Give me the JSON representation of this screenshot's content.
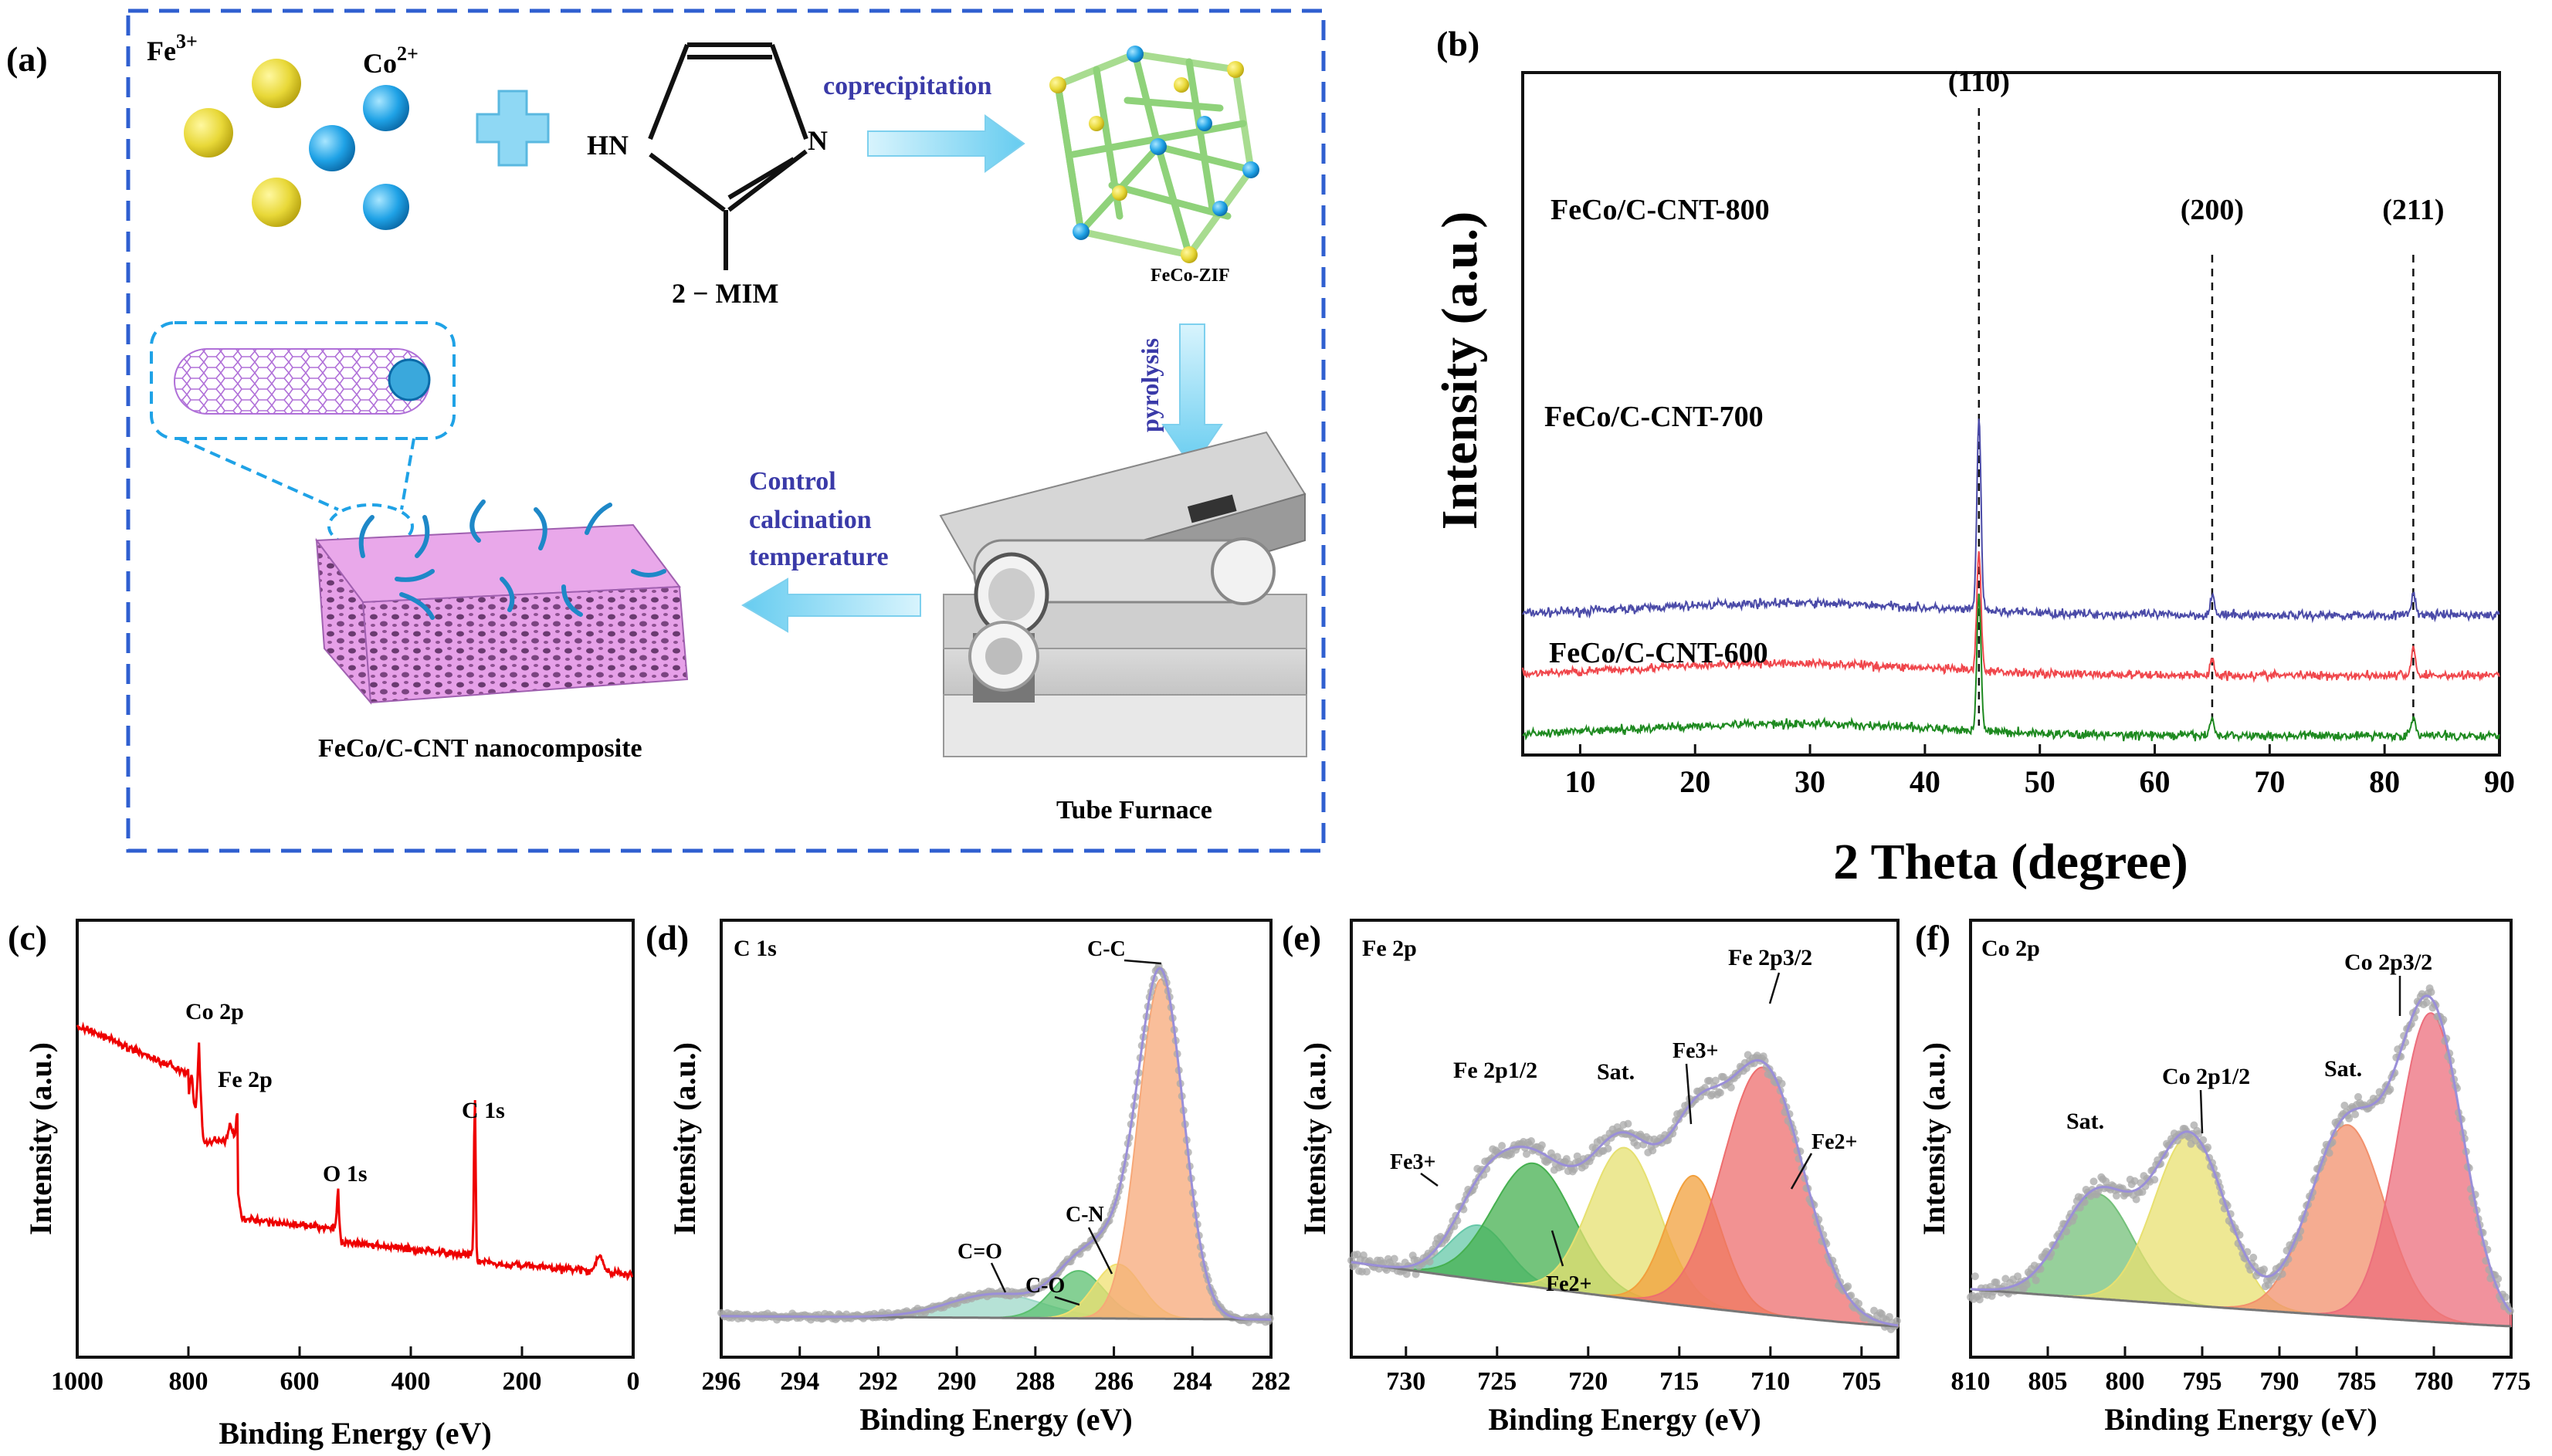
{
  "panel_labels": [
    "(a)",
    "(b)",
    "(c)",
    "(d)",
    "(e)",
    "(f)"
  ],
  "scheme": {
    "fe_ion": "Fe",
    "fe_charge": "3+",
    "co_ion": "Co",
    "co_charge": "2+",
    "linker_hn": "HN",
    "linker_n": "N",
    "linker_name": "2 − MIM",
    "step_coprecipitation": "coprecipitation",
    "mof_name": "FeCo-ZIF",
    "step_pyrolysis": "pyrolysis",
    "furnace_label": "Tube Furnace",
    "step_control": [
      "Control",
      "calcination",
      "temperature"
    ],
    "product_label": "FeCo/C-CNT nanocomposite",
    "colors": {
      "fe": "#e8d838",
      "co": "#1fa2e6",
      "frame": "#2f5fd0",
      "arrow": "#66ccf0",
      "cnt": "#c690e0",
      "text_blue": "#3a3aa8"
    }
  },
  "chart_data": [
    {
      "id": "b",
      "type": "line",
      "xlabel": "2 Theta (degree)",
      "ylabel": "Intensity (a.u.)",
      "xlim": [
        5,
        90
      ],
      "xticks": [
        10,
        20,
        30,
        40,
        50,
        60,
        70,
        80,
        90
      ],
      "peaks": [
        {
          "x": 44.7,
          "label": "(110)"
        },
        {
          "x": 65.0,
          "label": "(200)"
        },
        {
          "x": 82.5,
          "label": "(211)"
        }
      ],
      "series": [
        {
          "name": "FeCo/C-CNT-800",
          "color": "#4b4ba8",
          "baseline": 0.62,
          "peak_heights": [
            2.9,
            0.3,
            0.34
          ]
        },
        {
          "name": "FeCo/C-CNT-700",
          "color": "#f0474c",
          "baseline": 0.32,
          "peak_heights": [
            1.8,
            0.24,
            0.42
          ]
        },
        {
          "name": "FeCo/C-CNT-600",
          "color": "#1e8a20",
          "baseline": 0.02,
          "peak_heights": [
            2.1,
            0.25,
            0.27
          ]
        }
      ]
    },
    {
      "id": "c",
      "type": "line",
      "xlabel": "Binding Energy (eV)",
      "ylabel": "Intensity (a.u.)",
      "xlim": [
        1000,
        0
      ],
      "xticks": [
        1000,
        800,
        600,
        400,
        200,
        0
      ],
      "series": [
        {
          "name": "survey",
          "color": "#ee0000"
        }
      ],
      "annotations": [
        {
          "label": "Co 2p",
          "x": 780
        },
        {
          "label": "Fe 2p",
          "x": 711
        },
        {
          "label": "O 1s",
          "x": 531
        },
        {
          "label": "C 1s",
          "x": 284.8
        }
      ]
    },
    {
      "id": "d",
      "type": "line",
      "title": "C 1s",
      "xlabel": "Binding Energy (eV)",
      "ylabel": "Intensity (a.u.)",
      "xlim": [
        296,
        282
      ],
      "xticks": [
        296,
        294,
        292,
        290,
        288,
        286,
        284,
        282
      ],
      "components": [
        {
          "label": "C=O",
          "center": 289.0,
          "height": 0.07,
          "width": 2.4,
          "color": "#9ed8c8"
        },
        {
          "label": "C-O",
          "center": 286.9,
          "height": 0.14,
          "width": 1.3,
          "color": "#5cc070"
        },
        {
          "label": "C-N",
          "center": 285.9,
          "height": 0.16,
          "width": 1.2,
          "color": "#f0e070"
        },
        {
          "label": "C-C",
          "center": 284.8,
          "height": 1.0,
          "width": 1.15,
          "color": "#f7a878"
        }
      ]
    },
    {
      "id": "e",
      "type": "line",
      "title": "Fe 2p",
      "xlabel": "Binding Energy (eV)",
      "ylabel": "Intensity (a.u.)",
      "xlim": [
        733,
        703
      ],
      "xticks": [
        730,
        725,
        720,
        715,
        710,
        705
      ],
      "annotations": [
        "Fe 2p1/2",
        "Sat.",
        "Fe3+",
        "Fe 2p3/2",
        "Fe2+",
        "Fe3+",
        "Fe2+"
      ],
      "components": [
        {
          "center": 726.0,
          "height": 0.22,
          "width": 3.2,
          "color": "#66c8a8"
        },
        {
          "center": 723.0,
          "height": 0.5,
          "width": 4.4,
          "color": "#46b050"
        },
        {
          "center": 718.0,
          "height": 0.61,
          "width": 3.8,
          "color": "#e6e070"
        },
        {
          "center": 714.2,
          "height": 0.53,
          "width": 3.0,
          "color": "#f2a03c"
        },
        {
          "center": 710.4,
          "height": 1.0,
          "width": 4.4,
          "color": "#ee6e6e"
        }
      ]
    },
    {
      "id": "f",
      "type": "line",
      "title": "Co 2p",
      "xlabel": "Binding Energy (eV)",
      "ylabel": "Intensity (a.u.)",
      "xlim": [
        810,
        775
      ],
      "xticks": [
        810,
        805,
        800,
        795,
        790,
        785,
        780,
        775
      ],
      "annotations": [
        "Sat.",
        "Co 2p1/2",
        "Sat.",
        "Co 2p3/2"
      ],
      "components": [
        {
          "center": 801.8,
          "height": 0.34,
          "width": 4.6,
          "color": "#74c07a"
        },
        {
          "center": 795.8,
          "height": 0.55,
          "width": 4.6,
          "color": "#e8e070"
        },
        {
          "center": 785.6,
          "height": 0.62,
          "width": 4.8,
          "color": "#f2906c"
        },
        {
          "center": 780.2,
          "height": 1.0,
          "width": 4.2,
          "color": "#ec6e7c"
        }
      ]
    }
  ]
}
